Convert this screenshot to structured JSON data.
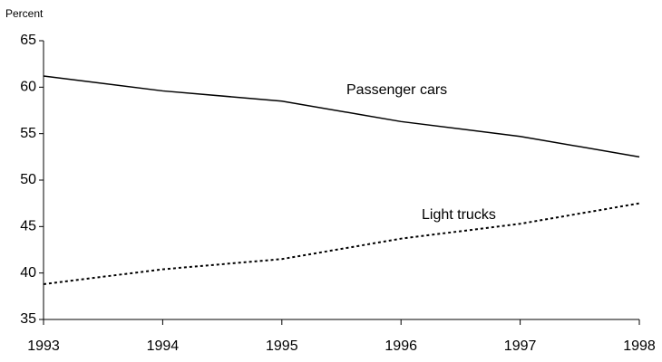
{
  "chart_data": {
    "type": "line",
    "y_label": "Percent",
    "x": [
      1993,
      1994,
      1995,
      1996,
      1997,
      1998
    ],
    "xlim": [
      1993,
      1998
    ],
    "xticks": [
      1993,
      1994,
      1995,
      1996,
      1997,
      1998
    ],
    "ylim": [
      35,
      65
    ],
    "yticks": [
      35,
      40,
      45,
      50,
      55,
      60,
      65
    ],
    "grid": false,
    "series": [
      {
        "name": "Passenger cars",
        "color": "#000000",
        "style": "solid",
        "values": [
          61.2,
          59.6,
          58.5,
          56.3,
          54.7,
          52.5
        ]
      },
      {
        "name": "Light trucks",
        "color": "#000000",
        "style": "dotted",
        "values": [
          38.8,
          40.4,
          41.5,
          43.7,
          45.3,
          47.5
        ]
      }
    ]
  }
}
